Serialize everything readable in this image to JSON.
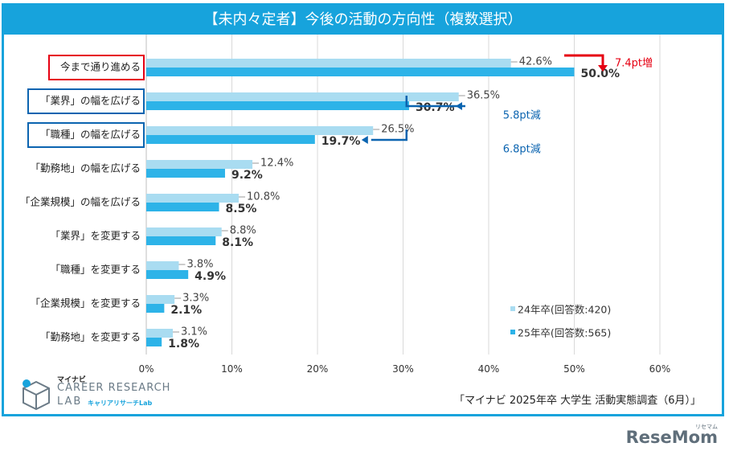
{
  "title": "【未内々定者】今後の活動の方向性（複数選択）",
  "chart_data": {
    "type": "bar",
    "orientation": "horizontal",
    "categories": [
      "今まで通り進める",
      "「業界」の幅を広げる",
      "「職種」の幅を広げる",
      "「勤務地」の幅を広げる",
      "「企業規模」の幅を広げる",
      "「業界」を変更する",
      "「職種」を変更する",
      "「企業規模」を変更する",
      "「勤務地」を変更する"
    ],
    "highlight": {
      "今まで通り進める": "#e60012",
      "「業界」の幅を広げる": "#0b64b0",
      "「職種」の幅を広げる": "#0b64b0"
    },
    "series": [
      {
        "name": "24年卒(回答数:420)",
        "color": "#a9dcf1",
        "values": [
          42.6,
          36.5,
          26.5,
          12.4,
          10.8,
          8.8,
          3.8,
          3.3,
          3.1
        ],
        "labels": [
          "42.6%",
          "36.5%",
          "26.5%",
          "12.4%",
          "10.8%",
          "8.8%",
          "3.8%",
          "3.3%",
          "3.1%"
        ]
      },
      {
        "name": "25年卒(回答数:565)",
        "color": "#2db3e8",
        "values": [
          50.0,
          30.7,
          19.7,
          9.2,
          8.5,
          8.1,
          4.9,
          2.1,
          1.8
        ],
        "labels": [
          "50.0%",
          "30.7%",
          "19.7%",
          "9.2%",
          "8.5%",
          "8.1%",
          "4.9%",
          "2.1%",
          "1.8%"
        ]
      }
    ],
    "xlim": [
      0,
      60
    ],
    "ticks": [
      0,
      10,
      20,
      30,
      40,
      50,
      60
    ],
    "tick_labels": [
      "0%",
      "10%",
      "20%",
      "30%",
      "40%",
      "50%",
      "60%"
    ],
    "grid": true,
    "legend_position": "bottom-right",
    "annotations": [
      {
        "category": "今まで通り進める",
        "text": "7.4pt増",
        "color": "#e60012",
        "direction": "increase"
      },
      {
        "category": "「業界」の幅を広げる",
        "text": "5.8pt減",
        "color": "#0b64b0",
        "direction": "decrease"
      },
      {
        "category": "「職種」の幅を広げる",
        "text": "6.8pt減",
        "color": "#0b64b0",
        "direction": "decrease"
      }
    ]
  },
  "source": "「マイナビ 2025年卒 大学生 活動実態調査（6月）」",
  "logo": {
    "brand": "マイナビ",
    "line1": "CAREER RESEARCH",
    "line2": "LAB",
    "kana": "キャリアリサーチLab"
  },
  "watermark": {
    "text": "ReseMom",
    "kana": "リセマム"
  }
}
